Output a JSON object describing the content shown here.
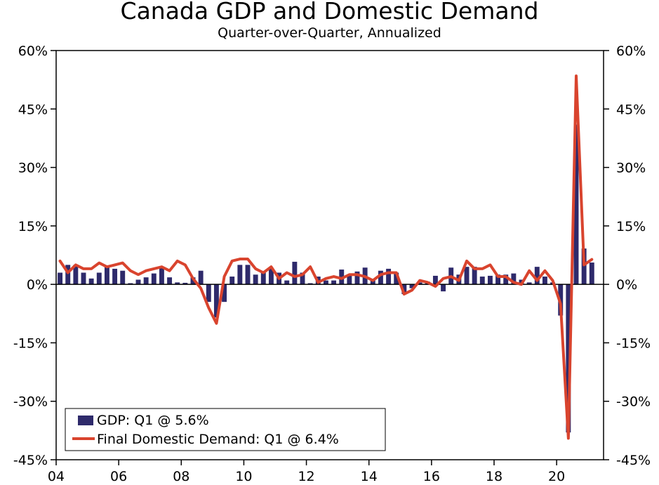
{
  "chart_data": {
    "type": "bar+line",
    "title": "Canada GDP and Domestic Demand",
    "subtitle": "Quarter-over-Quarter, Annualized",
    "ylim": [
      -45,
      60
    ],
    "y_ticks": [
      60,
      45,
      30,
      15,
      0,
      -15,
      -30,
      -45
    ],
    "y_tick_labels": [
      "60%",
      "45%",
      "30%",
      "15%",
      "0%",
      "-15%",
      "-30%",
      "-45%"
    ],
    "x_start": 2004.0,
    "x_end": 2021.5,
    "x_ticks": [
      2004,
      2006,
      2008,
      2010,
      2012,
      2014,
      2016,
      2018,
      2020
    ],
    "x_tick_labels": [
      "04",
      "06",
      "08",
      "10",
      "12",
      "14",
      "16",
      "18",
      "20"
    ],
    "colors": {
      "gdp": "#2e2a6b",
      "fdd": "#d9442e",
      "axis": "#000000"
    },
    "legend": {
      "position": "bottom-left",
      "gdp_label": "GDP: Q1 @ 5.6%",
      "fdd_label": "Final Domestic Demand: Q1 @ 6.4%"
    },
    "series": [
      {
        "name": "GDP",
        "kind": "bar",
        "start_year": 2004,
        "values": [
          3.0,
          5.0,
          5.0,
          3.0,
          1.5,
          3.0,
          4.5,
          4.0,
          3.5,
          0.3,
          1.2,
          1.8,
          2.8,
          4.2,
          1.8,
          0.5,
          0.4,
          1.8,
          3.5,
          -4.5,
          -8.5,
          -4.5,
          2.0,
          5.0,
          5.0,
          2.5,
          3.0,
          4.2,
          3.0,
          1.0,
          5.8,
          3.0,
          0.3,
          2.0,
          1.0,
          1.0,
          3.8,
          2.5,
          3.3,
          4.3,
          1.0,
          3.5,
          4.0,
          3.0,
          -2.5,
          -1.0,
          0.5,
          0.7,
          2.2,
          -1.8,
          4.3,
          2.5,
          4.5,
          4.5,
          2.0,
          2.2,
          2.5,
          2.5,
          2.8,
          1.2,
          0.5,
          4.5,
          2.0,
          0.5,
          -8.0,
          -38.0,
          41.0,
          9.2,
          5.6
        ]
      },
      {
        "name": "Final Domestic Demand",
        "kind": "line",
        "start_year": 2004,
        "values": [
          6.0,
          3.0,
          5.0,
          4.0,
          4.0,
          5.5,
          4.5,
          5.0,
          5.5,
          3.5,
          2.5,
          3.5,
          4.0,
          4.5,
          3.5,
          6.0,
          5.0,
          1.5,
          -1.0,
          -6.0,
          -10.0,
          2.0,
          6.0,
          6.5,
          6.5,
          4.0,
          3.0,
          4.5,
          1.5,
          3.0,
          2.0,
          2.5,
          4.5,
          0.5,
          1.5,
          2.0,
          1.5,
          2.5,
          2.5,
          2.0,
          1.0,
          2.5,
          3.0,
          3.0,
          -2.5,
          -1.5,
          1.0,
          0.5,
          -0.5,
          1.5,
          2.0,
          1.0,
          6.0,
          4.0,
          4.0,
          5.0,
          2.0,
          2.0,
          0.5,
          0.0,
          3.5,
          1.0,
          3.5,
          1.0,
          -5.0,
          -39.5,
          53.5,
          5.0,
          6.4
        ]
      }
    ]
  }
}
